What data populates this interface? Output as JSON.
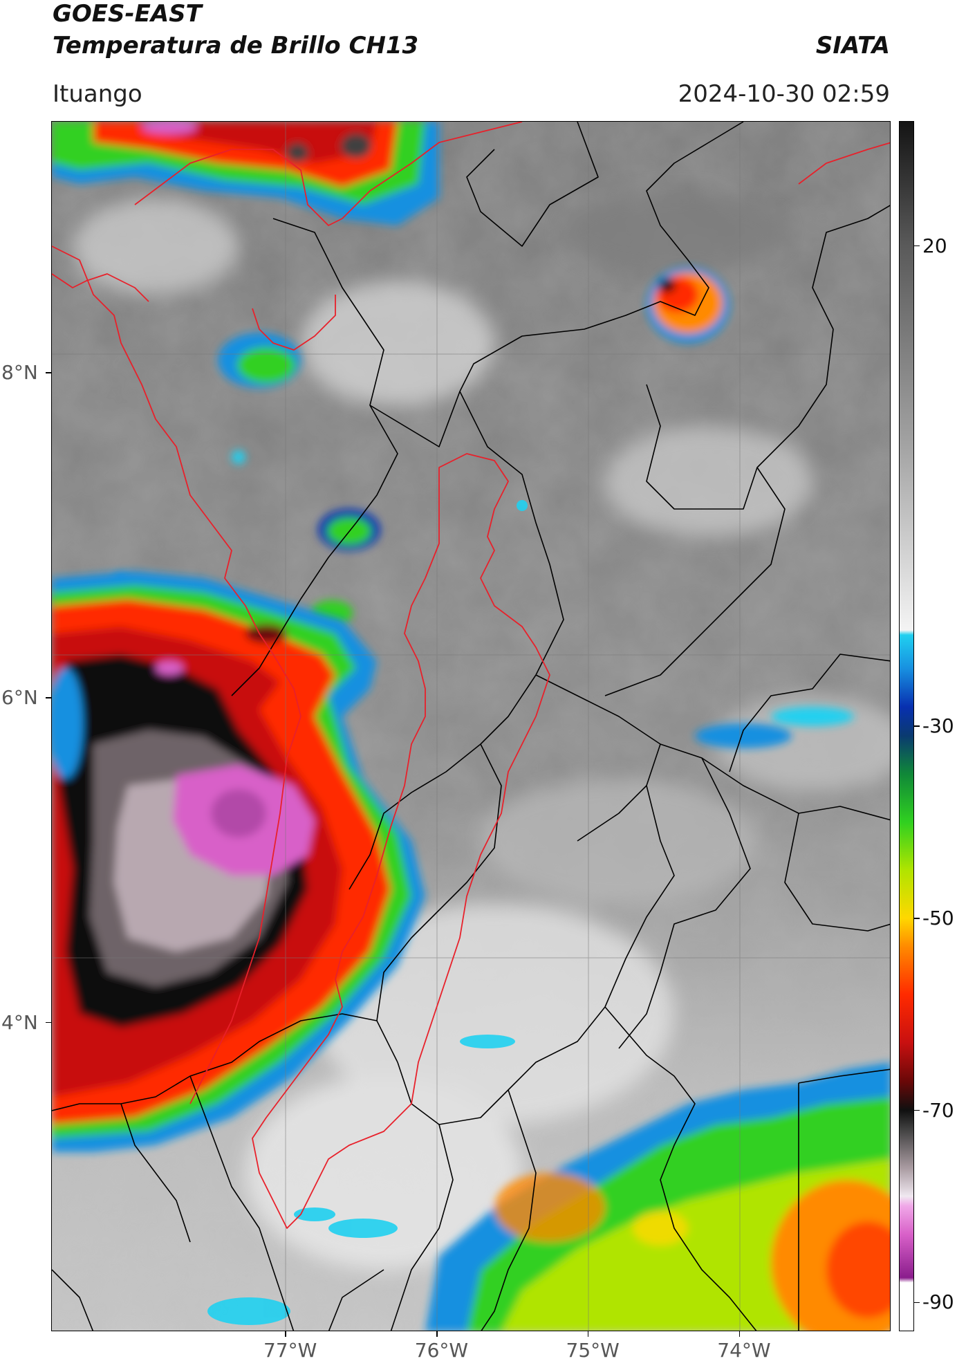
{
  "header": {
    "title_line1": "GOES-EAST",
    "title_line2": "Temperatura de Brillo CH13",
    "brand": "SIATA",
    "location": "Ituango",
    "timestamp": "2024-10-30 02:59"
  },
  "map": {
    "longitude_ticks": [
      {
        "label": "77°W",
        "lon": -77
      },
      {
        "label": "76°W",
        "lon": -76
      },
      {
        "label": "75°W",
        "lon": -75
      },
      {
        "label": "74°W",
        "lon": -74
      }
    ],
    "latitude_ticks": [
      {
        "label": "8°N",
        "lat": 8
      },
      {
        "label": "6°N",
        "lat": 6
      },
      {
        "label": "4°N",
        "lat": 4
      }
    ],
    "lon_range": [
      -78.55,
      -73.0
    ],
    "lat_range": [
      2.1,
      9.55
    ],
    "grid": true,
    "basin_outline_color": "#e8202a",
    "borders_color": "#000000"
  },
  "colorbar": {
    "ticks": [
      {
        "label": "20",
        "value": 20
      },
      {
        "label": "-30",
        "value": -30
      },
      {
        "label": "-50",
        "value": -50
      },
      {
        "label": "-70",
        "value": -70
      },
      {
        "label": "-90",
        "value": -90
      }
    ],
    "range": [
      -93,
      33
    ],
    "stops": [
      {
        "value": -93,
        "color": "#ffffff"
      },
      {
        "value": -88,
        "color": "#ffffff"
      },
      {
        "value": -87.5,
        "color": "#8a1d8c"
      },
      {
        "value": -83,
        "color": "#d860c8"
      },
      {
        "value": -80,
        "color": "#f0a8e8"
      },
      {
        "value": -79,
        "color": "#f0e8f0"
      },
      {
        "value": -76,
        "color": "#a89aa0"
      },
      {
        "value": -72,
        "color": "#404040"
      },
      {
        "value": -70,
        "color": "#101010"
      },
      {
        "value": -67,
        "color": "#6a0808"
      },
      {
        "value": -63,
        "color": "#c81010"
      },
      {
        "value": -58,
        "color": "#ff2a00"
      },
      {
        "value": -53,
        "color": "#ff8a00"
      },
      {
        "value": -50,
        "color": "#ffd800"
      },
      {
        "value": -45,
        "color": "#b0e400"
      },
      {
        "value": -40,
        "color": "#30d020"
      },
      {
        "value": -35,
        "color": "#108838"
      },
      {
        "value": -31,
        "color": "#0a3a70"
      },
      {
        "value": -28,
        "color": "#0830b0"
      },
      {
        "value": -24,
        "color": "#1890e0"
      },
      {
        "value": -20.5,
        "color": "#20d0f0"
      },
      {
        "value": -20,
        "color": "#f4f4f4"
      },
      {
        "value": 0,
        "color": "#a0a0a0"
      },
      {
        "value": 20,
        "color": "#5a5a5a"
      },
      {
        "value": 33,
        "color": "#141414"
      }
    ]
  },
  "icons": {
    "map": "satellite-map-icon"
  }
}
